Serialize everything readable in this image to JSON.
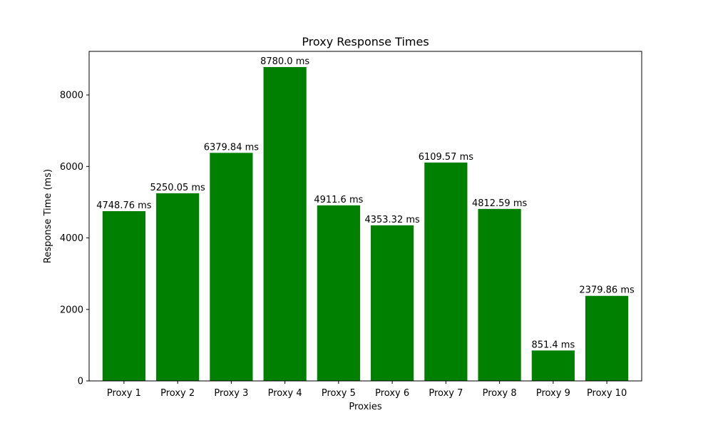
{
  "chart_data": {
    "type": "bar",
    "title": "Proxy Response Times",
    "xlabel": "Proxies",
    "ylabel": "Response Time (ms)",
    "categories": [
      "Proxy 1",
      "Proxy 2",
      "Proxy 3",
      "Proxy 4",
      "Proxy 5",
      "Proxy 6",
      "Proxy 7",
      "Proxy 8",
      "Proxy 9",
      "Proxy 10"
    ],
    "values": [
      4748.76,
      5250.05,
      6379.84,
      8780.0,
      4911.6,
      4353.32,
      6109.57,
      4812.59,
      851.4,
      2379.86
    ],
    "data_labels": [
      "4748.76 ms",
      "5250.05 ms",
      "6379.84 ms",
      "8780.0 ms",
      "4911.6 ms",
      "4353.32 ms",
      "6109.57 ms",
      "4812.59 ms",
      "851.4 ms",
      "2379.86 ms"
    ],
    "ylim": [
      0,
      9219
    ],
    "yticks": [
      0,
      2000,
      4000,
      6000,
      8000
    ],
    "grid": false,
    "bar_color": "#008000"
  }
}
